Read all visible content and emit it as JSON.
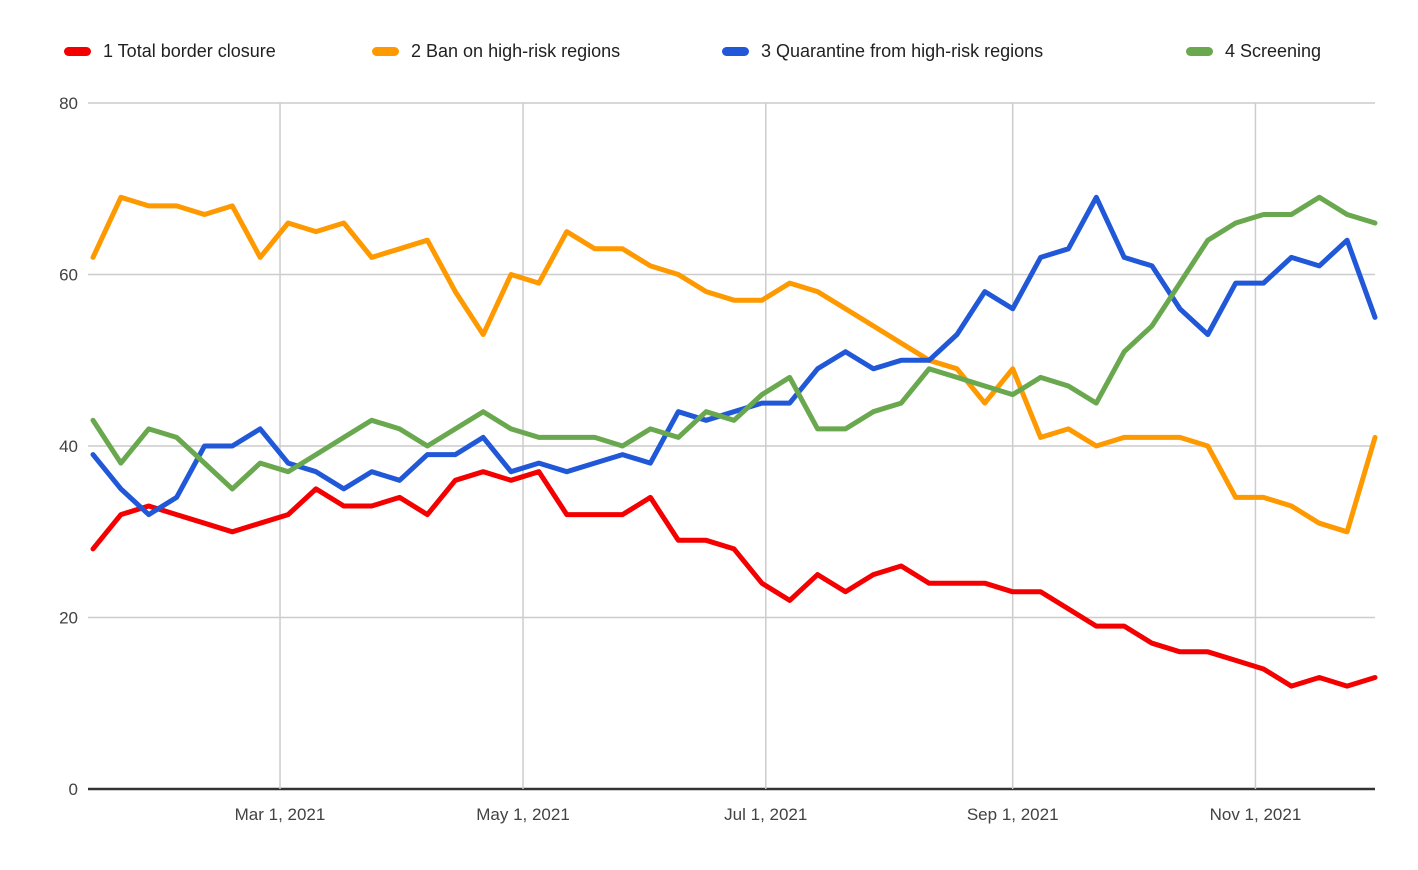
{
  "chart_data": {
    "type": "line",
    "title": "",
    "xlabel": "",
    "ylabel": "",
    "grid": true,
    "legend_position": "top",
    "x_range": [
      0,
      46
    ],
    "x_unit": "weeks",
    "ylim": [
      0,
      80
    ],
    "yticks": [
      0,
      20,
      40,
      60,
      80
    ],
    "x_tick_labels": [
      {
        "label": "Mar 1, 2021",
        "week": 6.71
      },
      {
        "label": "May 1, 2021",
        "week": 15.43
      },
      {
        "label": "Jul 1, 2021",
        "week": 24.14
      },
      {
        "label": "Sep 1, 2021",
        "week": 33.0
      },
      {
        "label": "Nov 1, 2021",
        "week": 41.71
      }
    ],
    "colors": {
      "grid": "#cccccc",
      "baseline": "#333333",
      "tick_text": "#424242",
      "legend_text": "#212121",
      "background": "#ffffff"
    },
    "series": [
      {
        "name": "1 Total border closure",
        "color": "#f40000",
        "values": [
          28,
          32,
          33,
          32,
          31,
          30,
          31,
          32,
          35,
          33,
          33,
          34,
          32,
          36,
          37,
          36,
          37,
          32,
          32,
          32,
          34,
          29,
          29,
          28,
          24,
          22,
          25,
          23,
          25,
          26,
          24,
          24,
          24,
          23,
          23,
          21,
          19,
          19,
          17,
          16,
          16,
          15,
          14,
          12,
          13,
          12,
          13
        ]
      },
      {
        "name": "2 Ban on high-risk regions",
        "color": "#ff9900",
        "values": [
          62,
          69,
          68,
          68,
          67,
          68,
          62,
          66,
          65,
          66,
          62,
          63,
          64,
          58,
          53,
          60,
          59,
          65,
          63,
          63,
          61,
          60,
          58,
          57,
          57,
          59,
          58,
          56,
          54,
          52,
          50,
          49,
          45,
          49,
          41,
          42,
          40,
          41,
          41,
          41,
          40,
          34,
          34,
          33,
          31,
          30,
          41
        ]
      },
      {
        "name": "3 Quarantine from high-risk regions",
        "color": "#2058d8",
        "values": [
          39,
          35,
          32,
          34,
          40,
          40,
          42,
          38,
          37,
          35,
          37,
          36,
          39,
          39,
          41,
          37,
          38,
          37,
          38,
          39,
          38,
          44,
          43,
          44,
          45,
          45,
          49,
          51,
          49,
          50,
          50,
          53,
          58,
          56,
          62,
          63,
          69,
          62,
          61,
          56,
          53,
          59,
          59,
          62,
          61,
          64,
          55
        ]
      },
      {
        "name": "4 Screening",
        "color": "#6aa84f",
        "values": [
          43,
          38,
          42,
          41,
          38,
          35,
          38,
          37,
          39,
          41,
          43,
          42,
          40,
          42,
          44,
          42,
          41,
          41,
          41,
          40,
          42,
          41,
          44,
          43,
          46,
          48,
          42,
          42,
          44,
          45,
          49,
          48,
          47,
          46,
          48,
          47,
          45,
          51,
          54,
          59,
          64,
          66,
          67,
          67,
          69,
          67,
          66
        ]
      }
    ]
  }
}
